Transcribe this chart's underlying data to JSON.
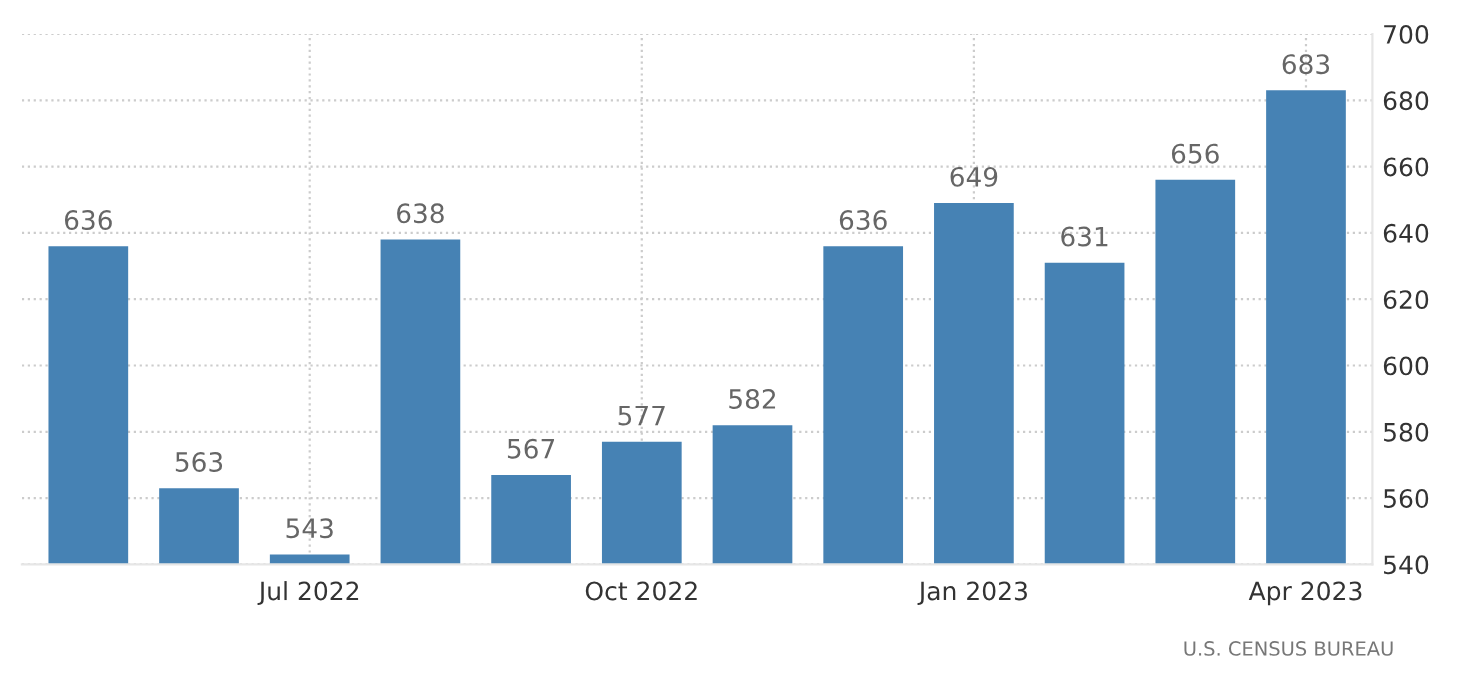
{
  "chart_data": {
    "type": "bar",
    "categories": [
      null,
      null,
      "Jul 2022",
      null,
      null,
      "Oct 2022",
      null,
      null,
      "Jan 2023",
      null,
      null,
      "Apr 2023"
    ],
    "values": [
      636,
      563,
      543,
      638,
      567,
      577,
      582,
      636,
      649,
      631,
      656,
      683
    ],
    "color": "#4682b4",
    "data_labels": true,
    "ylim": [
      540,
      700
    ],
    "yticks": [
      540,
      560,
      580,
      600,
      620,
      640,
      660,
      680,
      700
    ],
    "grid": true,
    "annotations": [
      "U.S. CENSUS BUREAU"
    ]
  }
}
